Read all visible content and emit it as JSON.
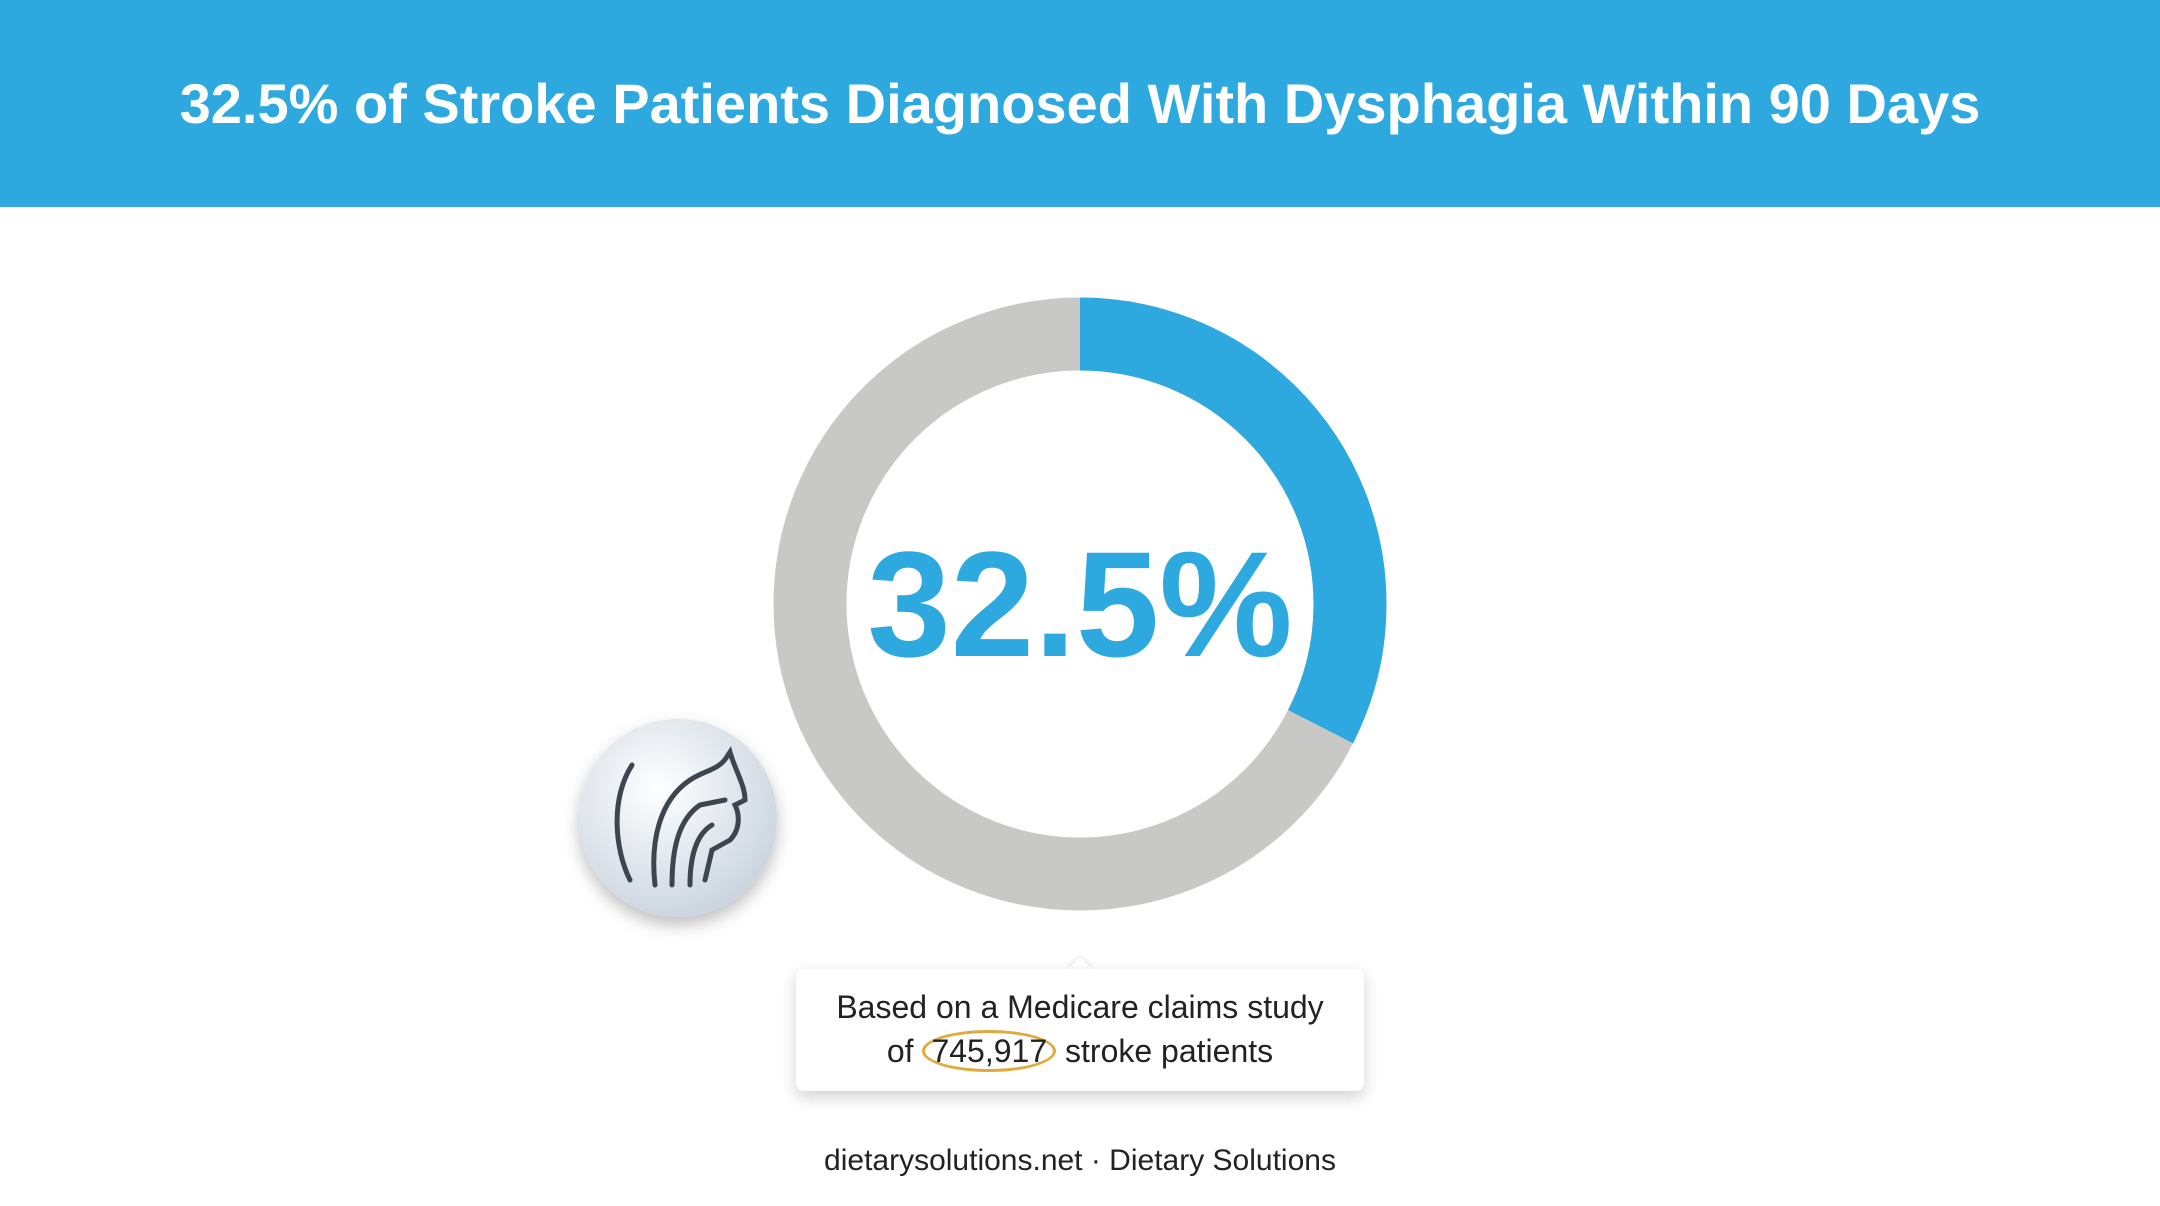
{
  "chart_data": {
    "type": "donut",
    "title": "32.5% of Stroke Patients Diagnosed With Dysphagia Within 90 Days",
    "values": [
      32.5
    ],
    "value_labels": [
      "32.5%"
    ],
    "ylim": [
      0,
      100
    ],
    "color": "#2ea9df",
    "track_color": "#c8c8c6",
    "note": {
      "line1": "Based on a Medicare claims study",
      "before": "of",
      "highlight": "745,917",
      "after": "stroke patients"
    },
    "source": "dietarysolutions.net · Dietary Solutions"
  }
}
